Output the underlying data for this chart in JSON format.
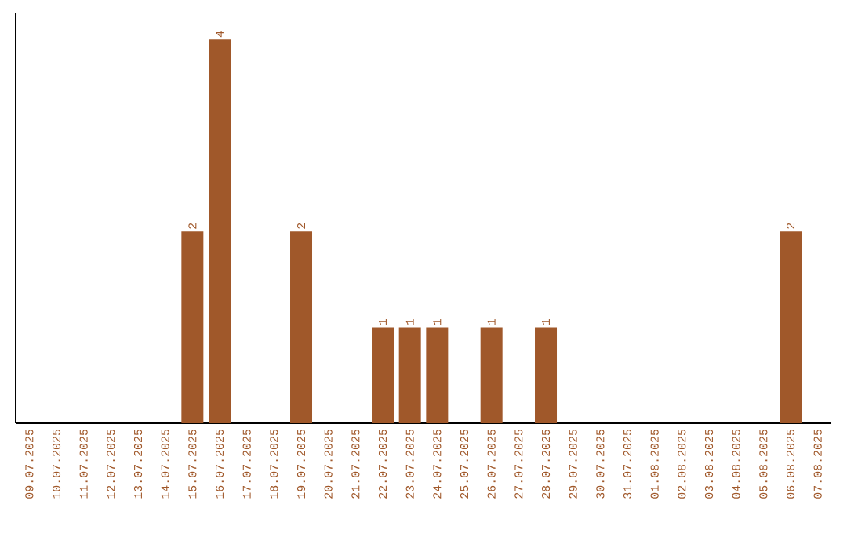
{
  "chart_data": {
    "type": "bar",
    "categories": [
      "09.07.2025",
      "10.07.2025",
      "11.07.2025",
      "12.07.2025",
      "13.07.2025",
      "14.07.2025",
      "15.07.2025",
      "16.07.2025",
      "17.07.2025",
      "18.07.2025",
      "19.07.2025",
      "20.07.2025",
      "21.07.2025",
      "22.07.2025",
      "23.07.2025",
      "24.07.2025",
      "25.07.2025",
      "26.07.2025",
      "27.07.2025",
      "28.07.2025",
      "29.07.2025",
      "30.07.2025",
      "31.07.2025",
      "01.08.2025",
      "02.08.2025",
      "03.08.2025",
      "04.08.2025",
      "05.08.2025",
      "06.08.2025",
      "07.08.2025"
    ],
    "values": [
      0,
      0,
      0,
      0,
      0,
      0,
      2,
      4,
      0,
      0,
      2,
      0,
      0,
      1,
      1,
      1,
      0,
      1,
      0,
      1,
      0,
      0,
      0,
      0,
      0,
      0,
      0,
      0,
      2,
      0
    ],
    "value_labels": [
      null,
      null,
      null,
      null,
      null,
      null,
      "2",
      "4",
      null,
      null,
      "2",
      null,
      null,
      "1",
      "1",
      "1",
      null,
      "1",
      null,
      "1",
      null,
      null,
      null,
      null,
      null,
      null,
      null,
      null,
      "2",
      null
    ],
    "color": "#a0582a"
  }
}
